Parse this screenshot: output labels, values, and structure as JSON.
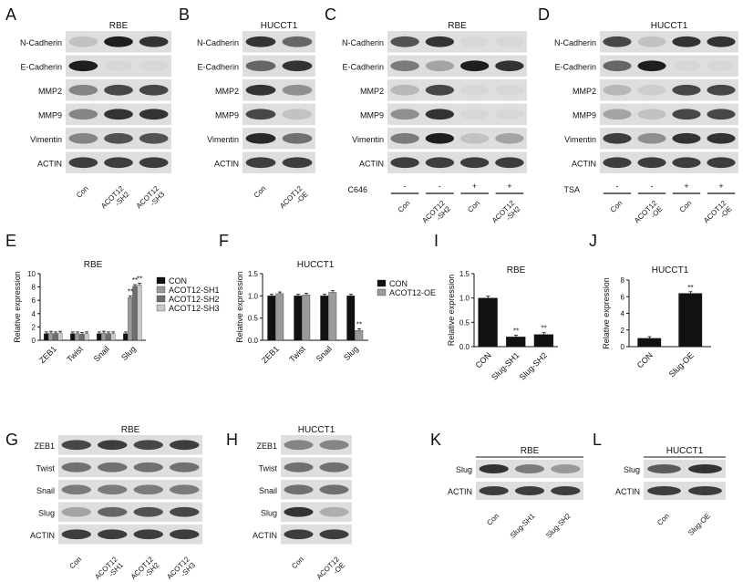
{
  "panels": {
    "A": {
      "letter": "A",
      "title": "RBE",
      "rows": [
        "N-Cadherin",
        "E-Cadherin",
        "MMP2",
        "MMP9",
        "Vimentin",
        "ACTIN"
      ],
      "lanes": [
        "Con",
        "ACOT12\n-SH2",
        "ACOT12\n-SH3"
      ],
      "bands": [
        [
          0.15,
          0.95,
          0.85
        ],
        [
          0.95,
          0.05,
          0.05
        ],
        [
          0.45,
          0.75,
          0.75
        ],
        [
          0.45,
          0.85,
          0.85
        ],
        [
          0.45,
          0.7,
          0.7
        ],
        [
          0.8,
          0.8,
          0.8
        ]
      ]
    },
    "B": {
      "letter": "B",
      "title": "HUCCT1",
      "rows": [
        "N-Cadherin",
        "E-Cadherin",
        "MMP2",
        "MMP9",
        "Vimentin",
        "ACTIN"
      ],
      "lanes": [
        "Con",
        "ACOT12\n-OE"
      ],
      "bands": [
        [
          0.85,
          0.6
        ],
        [
          0.6,
          0.85
        ],
        [
          0.85,
          0.4
        ],
        [
          0.75,
          0.15
        ],
        [
          0.9,
          0.55
        ],
        [
          0.8,
          0.8
        ]
      ]
    },
    "C": {
      "letter": "C",
      "title": "RBE",
      "rows": [
        "N-Cadherin",
        "E-Cadherin",
        "MMP2",
        "MMP9",
        "Vimentin",
        "ACTIN"
      ],
      "lanes": [
        "Con",
        "ACOT12\n-SH2",
        "Con",
        "ACOT12\n-SH2"
      ],
      "treatment": "C646",
      "treat_marks": [
        "-",
        "-",
        "+",
        "+"
      ],
      "bands": [
        [
          0.7,
          0.85,
          0.05,
          0.05
        ],
        [
          0.5,
          0.3,
          0.95,
          0.85
        ],
        [
          0.2,
          0.75,
          0.05,
          0.05
        ],
        [
          0.4,
          0.85,
          0.05,
          0.05
        ],
        [
          0.5,
          0.95,
          0.15,
          0.3
        ],
        [
          0.8,
          0.8,
          0.8,
          0.8
        ]
      ]
    },
    "D": {
      "letter": "D",
      "title": "HUCCT1",
      "rows": [
        "N-Cadherin",
        "E-Cadherin",
        "MMP2",
        "MMP9",
        "Vimentin",
        "ACTIN"
      ],
      "lanes": [
        "Con",
        "ACOT12\n-OE",
        "Con",
        "ACOT12\n-OE"
      ],
      "treatment": "TSA",
      "treat_marks": [
        "-",
        "-",
        "+",
        "+"
      ],
      "bands": [
        [
          0.75,
          0.15,
          0.85,
          0.85
        ],
        [
          0.6,
          0.95,
          0.05,
          0.05
        ],
        [
          0.2,
          0.1,
          0.75,
          0.75
        ],
        [
          0.3,
          0.15,
          0.75,
          0.75
        ],
        [
          0.8,
          0.4,
          0.85,
          0.85
        ],
        [
          0.8,
          0.8,
          0.8,
          0.8
        ]
      ]
    },
    "E": {
      "letter": "E"
    },
    "F": {
      "letter": "F"
    },
    "G": {
      "letter": "G",
      "title": "RBE",
      "rows": [
        "ZEB1",
        "Twist",
        "Snail",
        "Slug",
        "ACTIN"
      ],
      "lanes": [
        "Con",
        "ACOT12\n-SH1",
        "ACOT12\n-SH2",
        "ACOT12\n-SH3"
      ],
      "bands": [
        [
          0.75,
          0.8,
          0.75,
          0.8
        ],
        [
          0.55,
          0.55,
          0.55,
          0.55
        ],
        [
          0.5,
          0.5,
          0.5,
          0.5
        ],
        [
          0.3,
          0.6,
          0.7,
          0.75
        ],
        [
          0.8,
          0.8,
          0.8,
          0.8
        ]
      ]
    },
    "H": {
      "letter": "H",
      "title": "HUCCT1",
      "rows": [
        "ZEB1",
        "Twist",
        "Snail",
        "Slug",
        "ACTIN"
      ],
      "lanes": [
        "Con",
        "ACOT12\n-OE"
      ],
      "bands": [
        [
          0.45,
          0.45
        ],
        [
          0.55,
          0.55
        ],
        [
          0.55,
          0.55
        ],
        [
          0.85,
          0.25
        ],
        [
          0.8,
          0.8
        ]
      ]
    },
    "I": {
      "letter": "I"
    },
    "J": {
      "letter": "J"
    },
    "K": {
      "letter": "K",
      "title": "RBE",
      "rows": [
        "Slug",
        "ACTIN"
      ],
      "lanes": [
        "Con",
        "Slug-SH1",
        "Slug-SH2"
      ],
      "bands": [
        [
          0.85,
          0.5,
          0.35
        ],
        [
          0.8,
          0.8,
          0.8
        ]
      ]
    },
    "L": {
      "letter": "L",
      "title": "HUCCT1",
      "rows": [
        "Slug",
        "ACTIN"
      ],
      "lanes": [
        "Con",
        "Slug-OE"
      ],
      "bands": [
        [
          0.65,
          0.85
        ],
        [
          0.8,
          0.8
        ]
      ]
    }
  },
  "chart_data": [
    {
      "panel": "E",
      "type": "bar",
      "title": "RBE",
      "ylabel": "Relative expression",
      "ylim": [
        0,
        10
      ],
      "yticks": [
        "0",
        "2",
        "4",
        "6",
        "8",
        "10"
      ],
      "categories": [
        "ZEB1",
        "Twist",
        "Snail",
        "Slug"
      ],
      "series": [
        {
          "name": "CON",
          "color": "#111111",
          "values": [
            1,
            1,
            1,
            1
          ]
        },
        {
          "name": "ACOT12-SH1",
          "color": "#9a9a9a",
          "values": [
            1.1,
            1.0,
            1.1,
            6.4
          ]
        },
        {
          "name": "ACOT12-SH2",
          "color": "#6e6e6e",
          "values": [
            1.0,
            0.9,
            1.0,
            8.1
          ]
        },
        {
          "name": "ACOT12-SH3",
          "color": "#c8c8c8",
          "values": [
            1.1,
            1.0,
            1.0,
            8.3
          ]
        }
      ],
      "annotations": [
        "**",
        "**",
        "**"
      ]
    },
    {
      "panel": "F",
      "type": "bar",
      "title": "HUCCT1",
      "ylabel": "Relative expression",
      "ylim": [
        0,
        1.5
      ],
      "yticks": [
        "0.0",
        "0.5",
        "1.0",
        "1.5"
      ],
      "categories": [
        "ZEB1",
        "Twist",
        "Snail",
        "Slug"
      ],
      "series": [
        {
          "name": "CON",
          "color": "#111111",
          "values": [
            1.0,
            1.0,
            1.0,
            1.0
          ]
        },
        {
          "name": "ACOT12-OE",
          "color": "#9a9a9a",
          "values": [
            1.05,
            1.02,
            1.08,
            0.22
          ]
        }
      ],
      "annotations": [
        "**"
      ]
    },
    {
      "panel": "I",
      "type": "bar",
      "title": "RBE",
      "ylabel": "Relative expression",
      "ylim": [
        0,
        1.5
      ],
      "yticks": [
        "0.0",
        "0.5",
        "1.0",
        "1.5"
      ],
      "categories": [
        "CON",
        "Slug-SH1",
        "Slug-SH2"
      ],
      "series": [
        {
          "name": "",
          "color": "#111111",
          "values": [
            1.0,
            0.2,
            0.25
          ]
        }
      ],
      "annotations": [
        "**",
        "**"
      ]
    },
    {
      "panel": "J",
      "type": "bar",
      "title": "HUCCT1",
      "ylabel": "Relative expression",
      "ylim": [
        0,
        8
      ],
      "yticks": [
        "0",
        "2",
        "4",
        "6",
        "8"
      ],
      "categories": [
        "CON",
        "Slug-OE"
      ],
      "series": [
        {
          "name": "",
          "color": "#111111",
          "values": [
            1.0,
            6.4
          ]
        }
      ],
      "annotations": [
        "**"
      ]
    }
  ]
}
